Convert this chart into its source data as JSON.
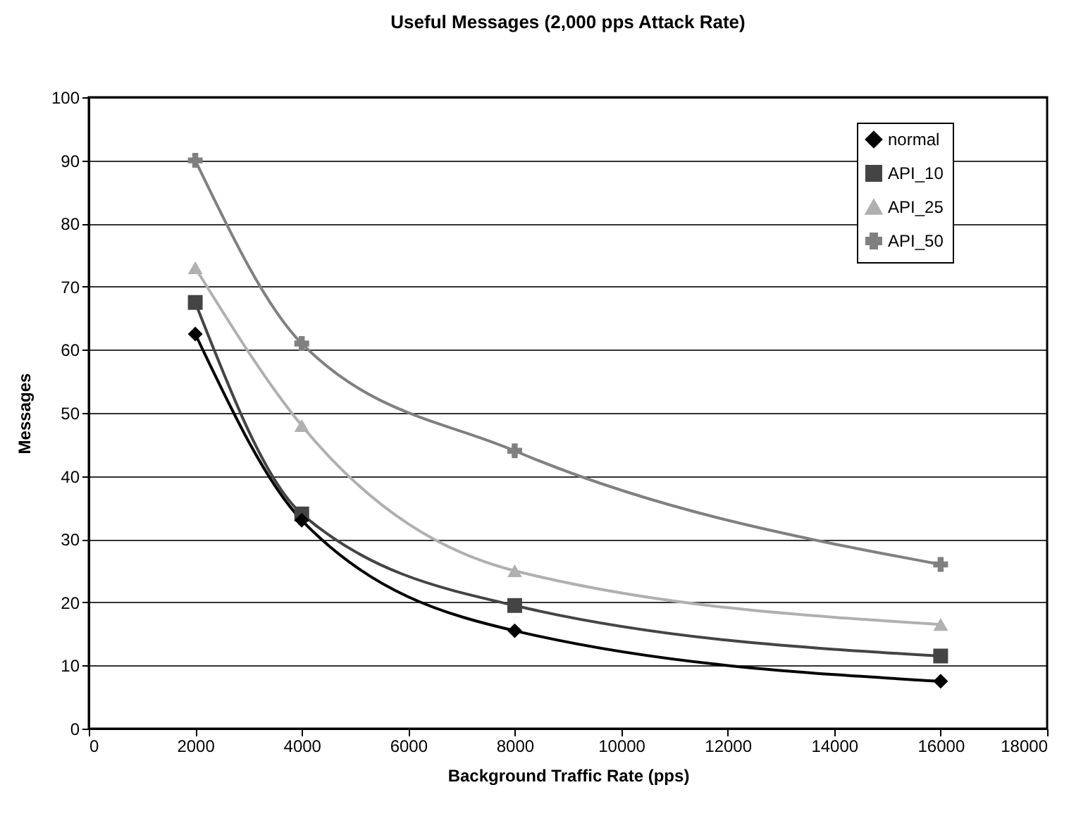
{
  "chart_data": {
    "type": "line",
    "title": "Useful Messages (2,000 pps Attack Rate)",
    "xlabel": "Background Traffic Rate (pps)",
    "ylabel": "Messages",
    "x": [
      2000,
      4000,
      8000,
      16000
    ],
    "series": [
      {
        "name": "normal",
        "color": "#000000",
        "marker": "diamond",
        "values": [
          62.5,
          33,
          15.5,
          7.5
        ]
      },
      {
        "name": "API_10",
        "color": "#444444",
        "marker": "square",
        "values": [
          67.5,
          34,
          19.5,
          11.5
        ]
      },
      {
        "name": "API_25",
        "color": "#b0b0b0",
        "marker": "triangle",
        "values": [
          73,
          48,
          25,
          16.5
        ]
      },
      {
        "name": "API_50",
        "color": "#808080",
        "marker": "cross",
        "values": [
          90,
          61,
          44,
          26
        ]
      }
    ],
    "xlim": [
      0,
      18000
    ],
    "xticks": [
      0,
      2000,
      4000,
      6000,
      8000,
      10000,
      12000,
      14000,
      16000,
      18000
    ],
    "ylim": [
      0,
      100
    ],
    "yticks": [
      0,
      10,
      20,
      30,
      40,
      50,
      60,
      70,
      80,
      90,
      100
    ],
    "grid": "y",
    "legend": "top right",
    "line_style": "solid"
  }
}
